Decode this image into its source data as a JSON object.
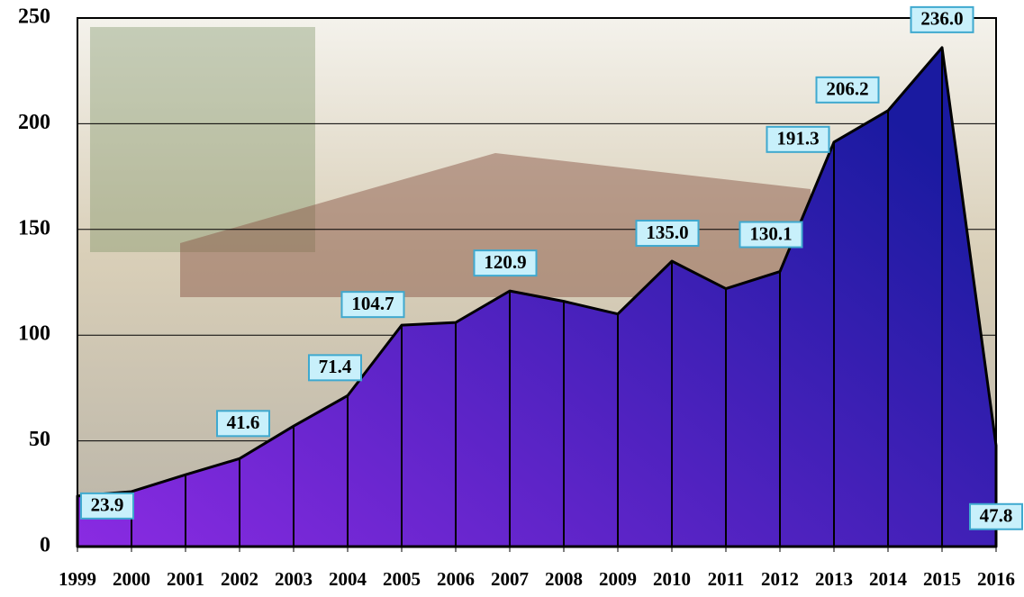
{
  "chart_data": {
    "type": "area",
    "categories": [
      "1999",
      "2000",
      "2001",
      "2002",
      "2003",
      "2004",
      "2005",
      "2006",
      "2007",
      "2008",
      "2009",
      "2010",
      "2011",
      "2012",
      "2013",
      "2014",
      "2015",
      "2016"
    ],
    "values": [
      23.9,
      26,
      34,
      41.6,
      57,
      71.4,
      104.7,
      106,
      120.9,
      116,
      110,
      135.0,
      122,
      130.1,
      191.3,
      206.2,
      236.0,
      47.8
    ],
    "value_labels": [
      "23.9",
      null,
      null,
      "41.6",
      null,
      "71.4",
      "104.7",
      null,
      "120.9",
      null,
      null,
      "135.0",
      null,
      "130.1",
      "191.3",
      "206.2",
      "236.0",
      "47.8"
    ],
    "ylim": [
      0,
      250
    ],
    "yticks": [
      0,
      50,
      100,
      150,
      200,
      250
    ],
    "grid": true,
    "colors": [
      "#8a2be2",
      "#1a1aa0"
    ]
  }
}
